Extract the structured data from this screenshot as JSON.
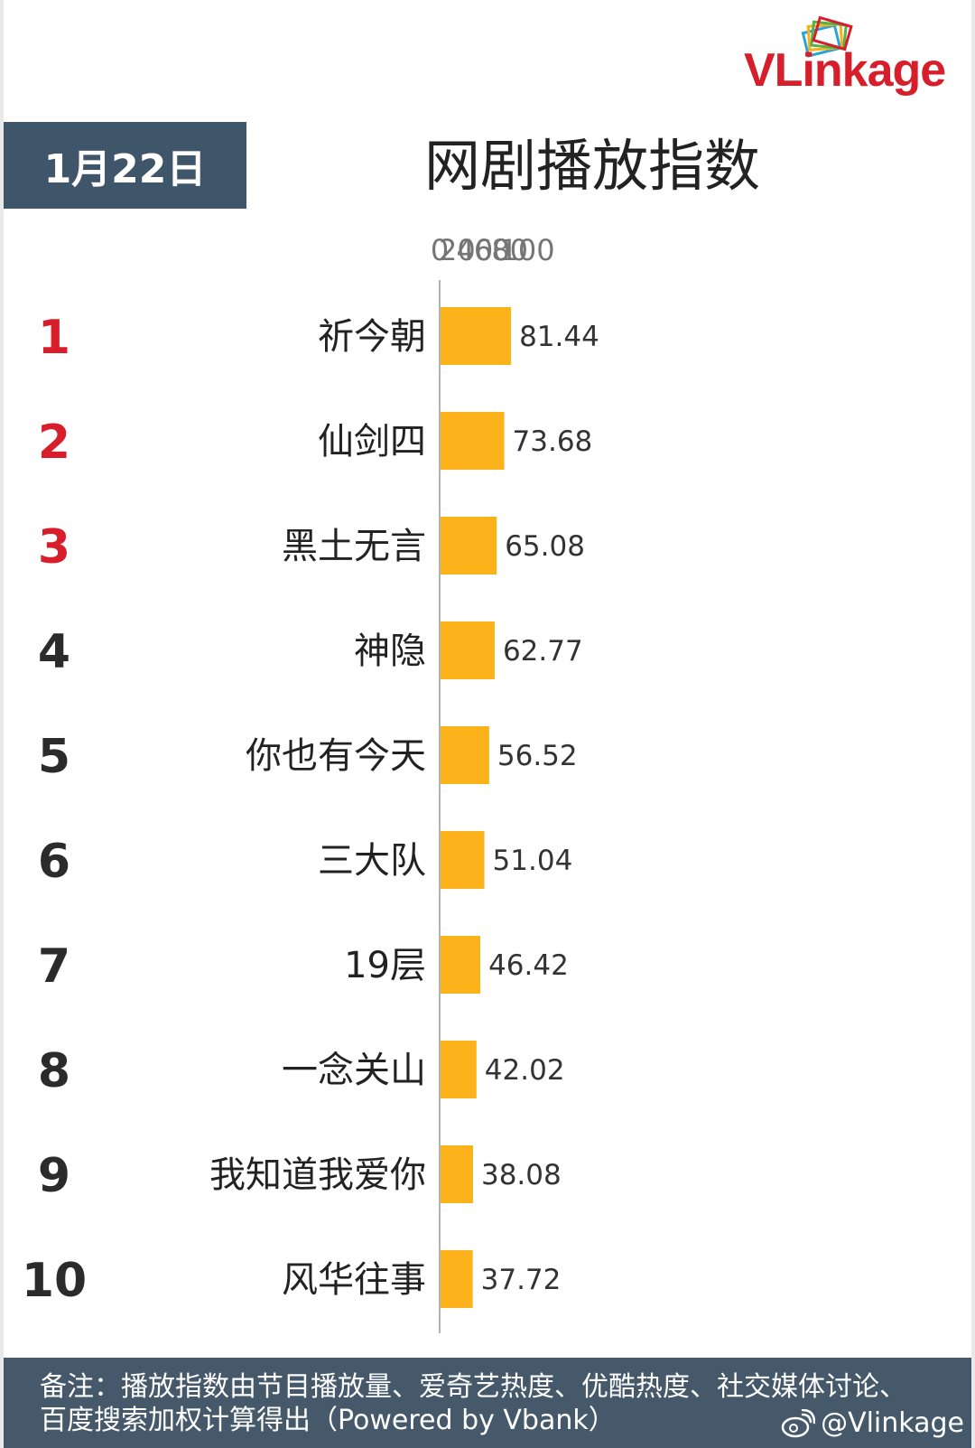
{
  "brand": {
    "logo_text": "VLinkage",
    "colors": {
      "brand_red": "#d61f2b",
      "badge_bg": "#3f5569",
      "footer_bg": "#45596b"
    }
  },
  "date_badge": "1月22日",
  "footer": {
    "note": "备注：播放指数由节目播放量、爱奇艺热度、优酷热度、社交媒体讨论、百度搜索加权计算得出（Powered by Vbank）",
    "weibo_handle": "@Vlinkage",
    "weibo_icon": "weibo-icon"
  },
  "chart_data": {
    "type": "bar",
    "orientation": "horizontal",
    "title": "网剧播放指数",
    "x_ticks": [
      0,
      20,
      40,
      60,
      80,
      100
    ],
    "xlim": [
      0,
      100
    ],
    "grid": false,
    "ranks": [
      "1",
      "2",
      "3",
      "4",
      "5",
      "6",
      "7",
      "8",
      "9",
      "10"
    ],
    "categories": [
      "祈今朝",
      "仙剑四",
      "黑土无言",
      "神隐",
      "你也有今天",
      "三大队",
      "19层",
      "一念关山",
      "我知道我爱你",
      "风华往事"
    ],
    "values": [
      81.44,
      73.68,
      65.08,
      62.77,
      56.52,
      51.04,
      46.42,
      42.02,
      38.08,
      37.72
    ],
    "colors": {
      "bar": "#fbb21b",
      "top3_rank": "#d81e2a",
      "rank": "#2b2b2b",
      "label": "#222222",
      "value": "#333333",
      "axis": "#b3b3b3",
      "tick": "#757575"
    }
  }
}
